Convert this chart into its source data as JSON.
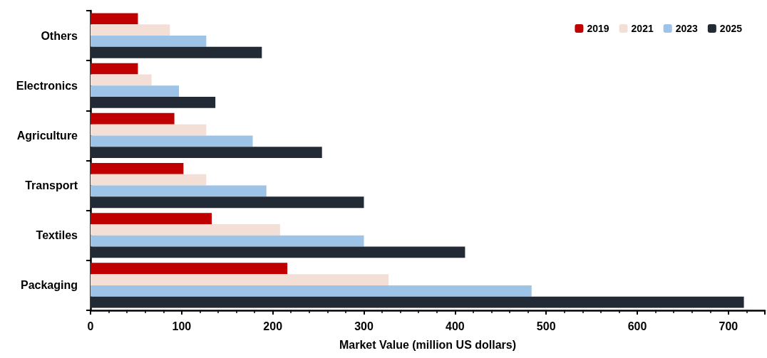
{
  "chart_data": {
    "type": "bar",
    "orientation": "horizontal",
    "xlabel": "Market Value (million US dollars)",
    "categories": [
      "Others",
      "Electronics",
      "Agriculture",
      "Transport",
      "Textiles",
      "Packaging"
    ],
    "series": [
      {
        "name": "2019",
        "color": "#c00000",
        "values": [
          52,
          52,
          92,
          102,
          133,
          216
        ]
      },
      {
        "name": "2021",
        "color": "#f4dfd6",
        "values": [
          87,
          67,
          127,
          127,
          208,
          327
        ]
      },
      {
        "name": "2023",
        "color": "#9dc3e6",
        "values": [
          127,
          97,
          178,
          193,
          300,
          484
        ]
      },
      {
        "name": "2025",
        "color": "#222a35",
        "values": [
          188,
          137,
          254,
          300,
          411,
          717
        ]
      }
    ],
    "xlim": [
      0,
      740
    ],
    "xticks": [
      0,
      100,
      200,
      300,
      400,
      500,
      600,
      700
    ],
    "grid": false,
    "legend": "top right"
  }
}
